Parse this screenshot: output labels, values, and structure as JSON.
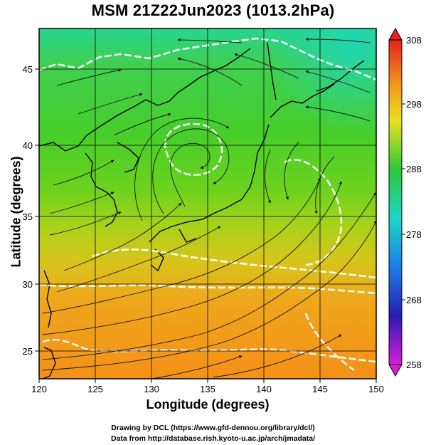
{
  "title": "MSM 21Z22Jun2023 (1013.2hPa)",
  "axes": {
    "xlabel": "Longitude (degrees)",
    "ylabel": "Latitude  (degrees)",
    "x_ticks": [
      "120",
      "125",
      "130",
      "135",
      "140",
      "145",
      "150"
    ],
    "y_ticks": [
      "25",
      "30",
      "35",
      "40",
      "45"
    ],
    "xlim": [
      120,
      150
    ],
    "ylim": [
      22.4,
      47.6
    ]
  },
  "colorbar": {
    "labels": [
      "308",
      "298",
      "288",
      "278",
      "268",
      "258"
    ],
    "range": [
      258,
      308
    ]
  },
  "credits": {
    "line1": "Drawing by DCL (https://www.gfd-dennou.org/library/dcl/)",
    "line2": "Data from http://database.rish.kyoto-u.ac.jp/arch/jmadata/"
  },
  "colors": {
    "warm": "#f39a1c",
    "mid": "#4ed02a",
    "cool": "#21d6a8"
  },
  "chart_data": {
    "type": "heatmap",
    "title": "MSM 21Z22Jun2023 (1013.2hPa)",
    "xlabel": "Longitude (degrees)",
    "ylabel": "Latitude  (degrees)",
    "xlim": [
      120,
      150
    ],
    "ylim": [
      22.4,
      47.6
    ],
    "colorbar_range": [
      258,
      308
    ],
    "colorbar_ticks": [
      308,
      298,
      288,
      278,
      268,
      258
    ],
    "grid": true,
    "overlays": [
      "coastlines",
      "streamlines",
      "contours"
    ]
  }
}
